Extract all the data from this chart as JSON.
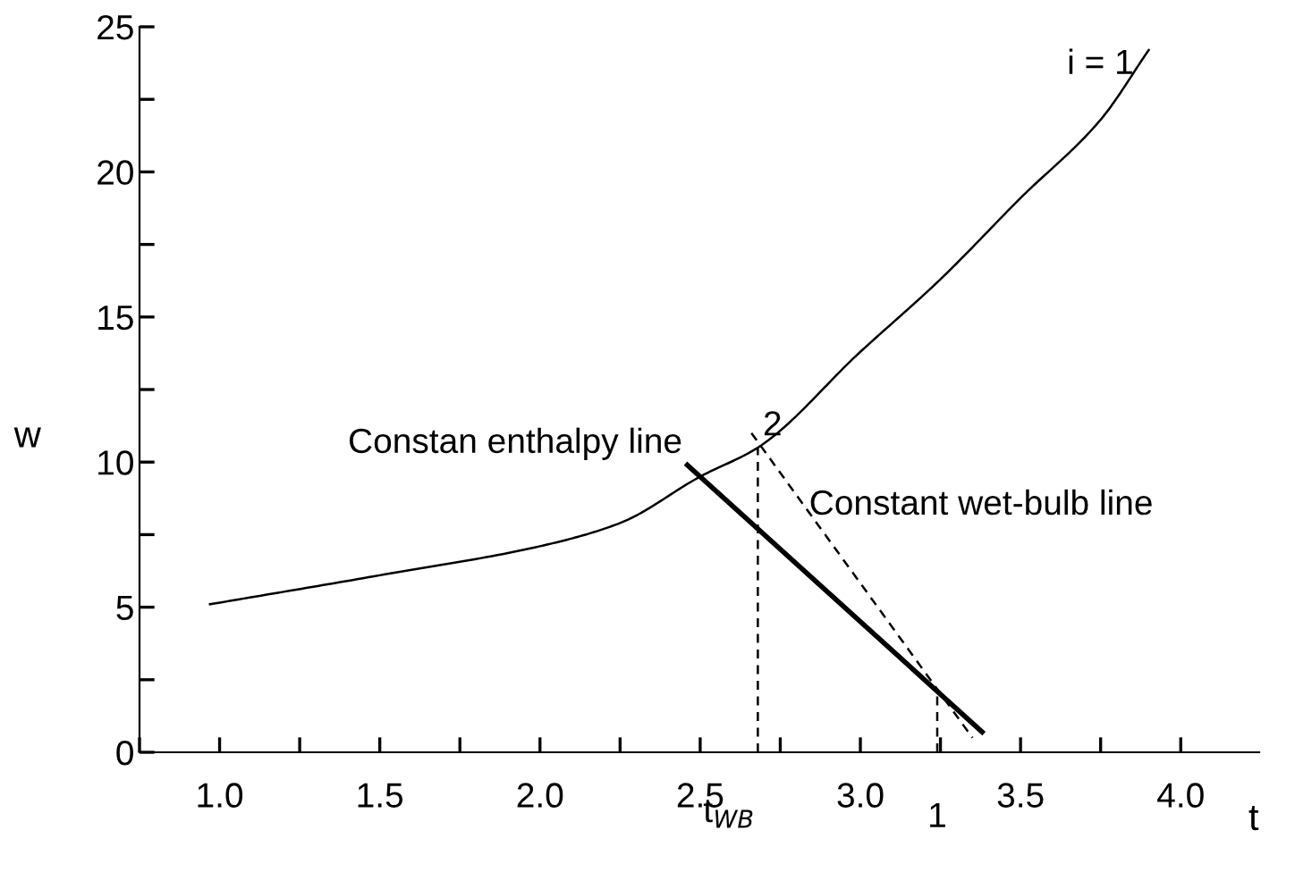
{
  "chart_data": {
    "type": "line",
    "xlabel": "t",
    "ylabel": "w",
    "xlim": [
      0.75,
      4.245
    ],
    "ylim": [
      0,
      25
    ],
    "xticks": [
      {
        "value": 0.75,
        "label": null
      },
      {
        "value": 1.0,
        "label": "1.0"
      },
      {
        "value": 1.25,
        "label": null
      },
      1.5,
      {
        "value": 1.75,
        "label": null
      },
      {
        "value": 2.0,
        "label": "2.0"
      },
      {
        "value": 2.25,
        "label": null
      },
      2.5,
      {
        "value": 2.75,
        "label": null
      },
      {
        "value": 3.0,
        "label": "3.0"
      },
      {
        "value": 3.25,
        "label": null
      },
      3.5,
      {
        "value": 3.75,
        "label": null
      },
      {
        "value": 4.0,
        "label": "4.0"
      }
    ],
    "yticks": [
      0,
      {
        "value": 2.5,
        "label": null
      },
      5,
      {
        "value": 7.5,
        "label": null
      },
      10,
      {
        "value": 12.5,
        "label": null
      },
      15,
      {
        "value": 17.5,
        "label": null
      },
      20,
      {
        "value": 22.5,
        "label": null
      },
      25
    ],
    "grid": false,
    "legend": false,
    "series": [
      {
        "color": "#000000",
        "line_style": "solid",
        "x": [
          0.97,
          1.5,
          2.0,
          2.25,
          2.5,
          2.68,
          3.0,
          3.25,
          3.5,
          3.75,
          3.9
        ],
        "values": [
          5.1,
          6.1,
          7.1,
          7.9,
          9.5,
          10.5,
          13.8,
          16.3,
          19.1,
          21.8,
          24.2
        ]
      },
      {
        "color": "#000000",
        "line_style": "solid",
        "x": [
          2.46,
          3.38
        ],
        "values": [
          9.9,
          0.7
        ]
      },
      {
        "color": "#000000",
        "line_style": "dashed",
        "x": [
          2.66,
          3.35
        ],
        "values": [
          11.0,
          0.5
        ]
      },
      {
        "color": "#000000",
        "line_style": "dashed",
        "x": [
          2.68,
          2.68
        ],
        "values": [
          0,
          10.5
        ]
      },
      {
        "color": "#000000",
        "line_style": "dashed",
        "x": [
          3.24,
          3.24
        ],
        "values": [
          0,
          2.0
        ]
      }
    ],
    "annotations": [
      {
        "text": "i = 1",
        "x": 3.9,
        "y": 24.2
      },
      {
        "text": "2",
        "x": 2.68,
        "y": 10.5
      },
      {
        "text": "Constan enthalpy line",
        "x": 2.46,
        "y": 9.9
      },
      {
        "text": "Constant wet-bulb line",
        "x": 2.84,
        "y": 8.5
      },
      {
        "text": "t$_{WB}$",
        "x": 2.68,
        "y": 0
      },
      {
        "text": "1",
        "x": 3.24,
        "y": 0
      }
    ]
  }
}
